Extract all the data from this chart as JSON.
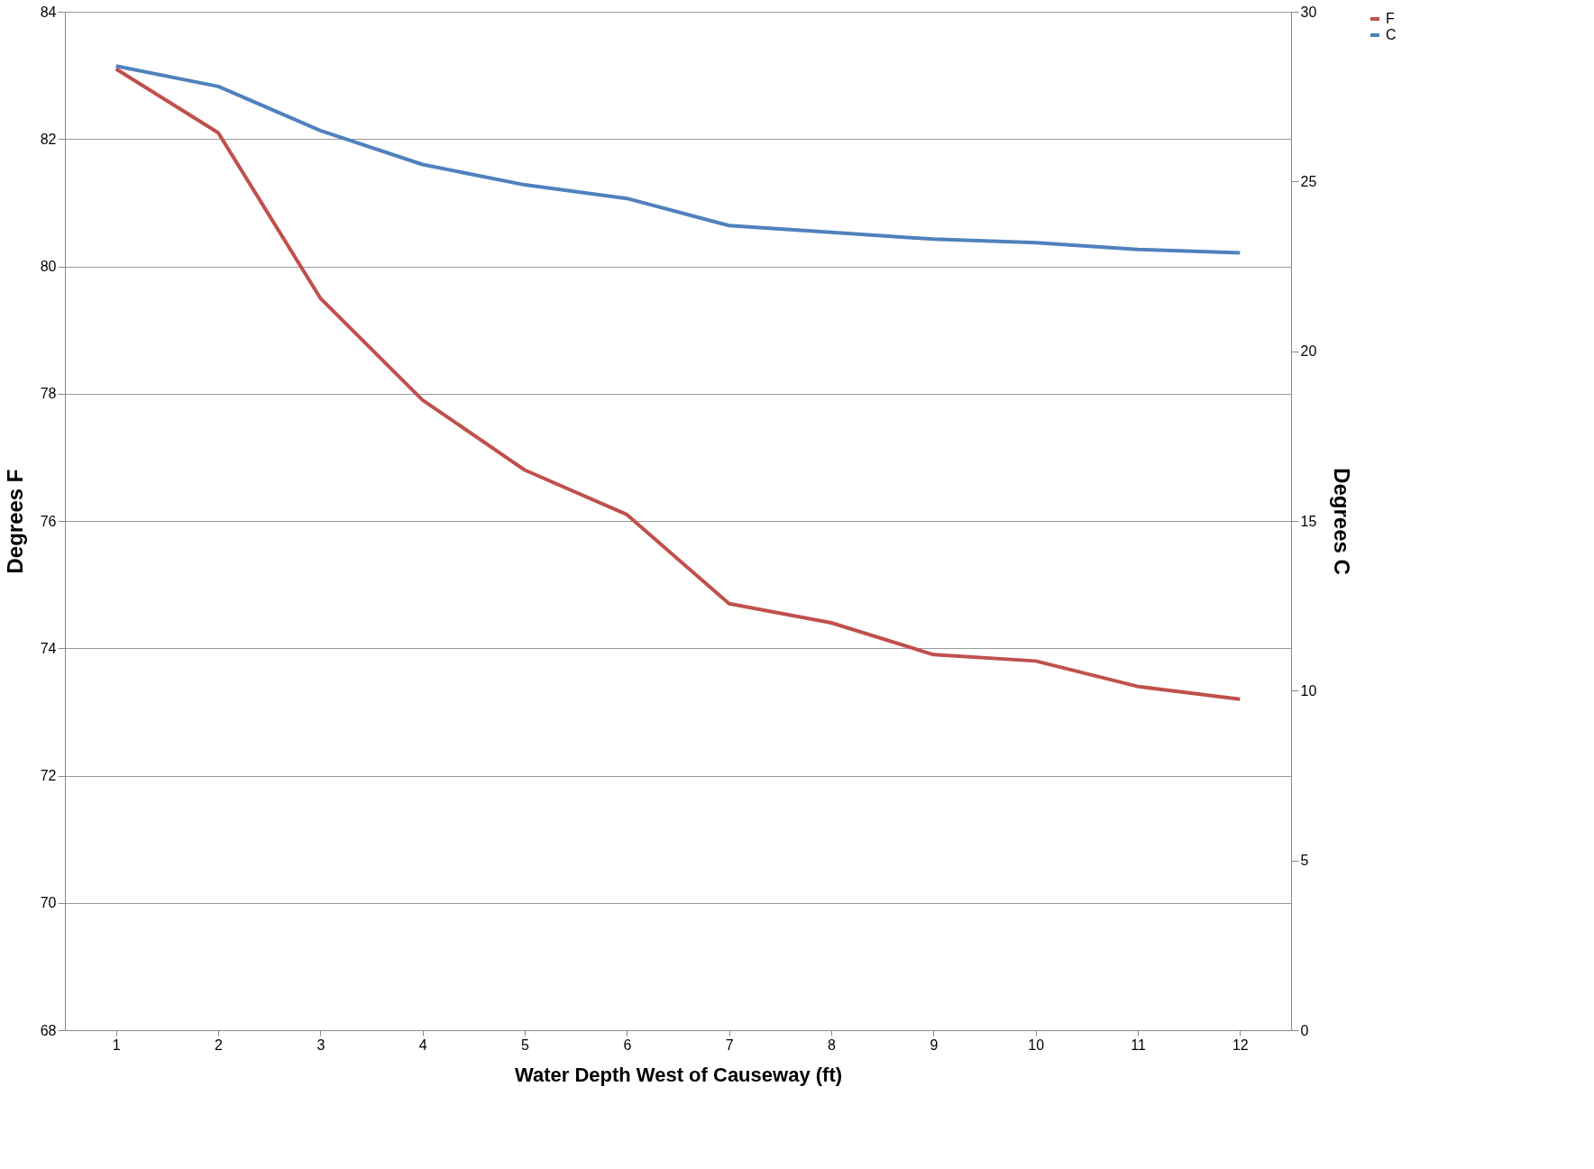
{
  "chart_data": {
    "type": "line",
    "xlabel": "Water Depth West of Causeway (ft)",
    "ylabel": "Degrees F",
    "y2label": "Degrees C",
    "categories": [
      "1",
      "2",
      "3",
      "4",
      "5",
      "6",
      "7",
      "8",
      "9",
      "10",
      "11",
      "12"
    ],
    "series": [
      {
        "name": "F",
        "color": "#c0504d",
        "values": [
          83.1,
          82.1,
          79.5,
          77.9,
          76.8,
          76.1,
          74.7,
          74.4,
          73.9,
          73.8,
          73.4,
          73.2
        ]
      },
      {
        "name": "C",
        "color": "#4f81bd",
        "axis": "y2",
        "values": [
          28.4,
          27.8,
          26.5,
          25.5,
          24.9,
          24.5,
          23.7,
          23.5,
          23.3,
          23.2,
          23.0,
          22.9
        ]
      }
    ],
    "ylim": [
      68,
      84
    ],
    "yticks": [
      68,
      70,
      72,
      74,
      76,
      78,
      80,
      82,
      84
    ],
    "y2lim": [
      0,
      30
    ],
    "y2ticks": [
      0,
      5,
      10,
      15,
      20,
      25,
      30
    ],
    "grid": "y",
    "legend": "right"
  }
}
